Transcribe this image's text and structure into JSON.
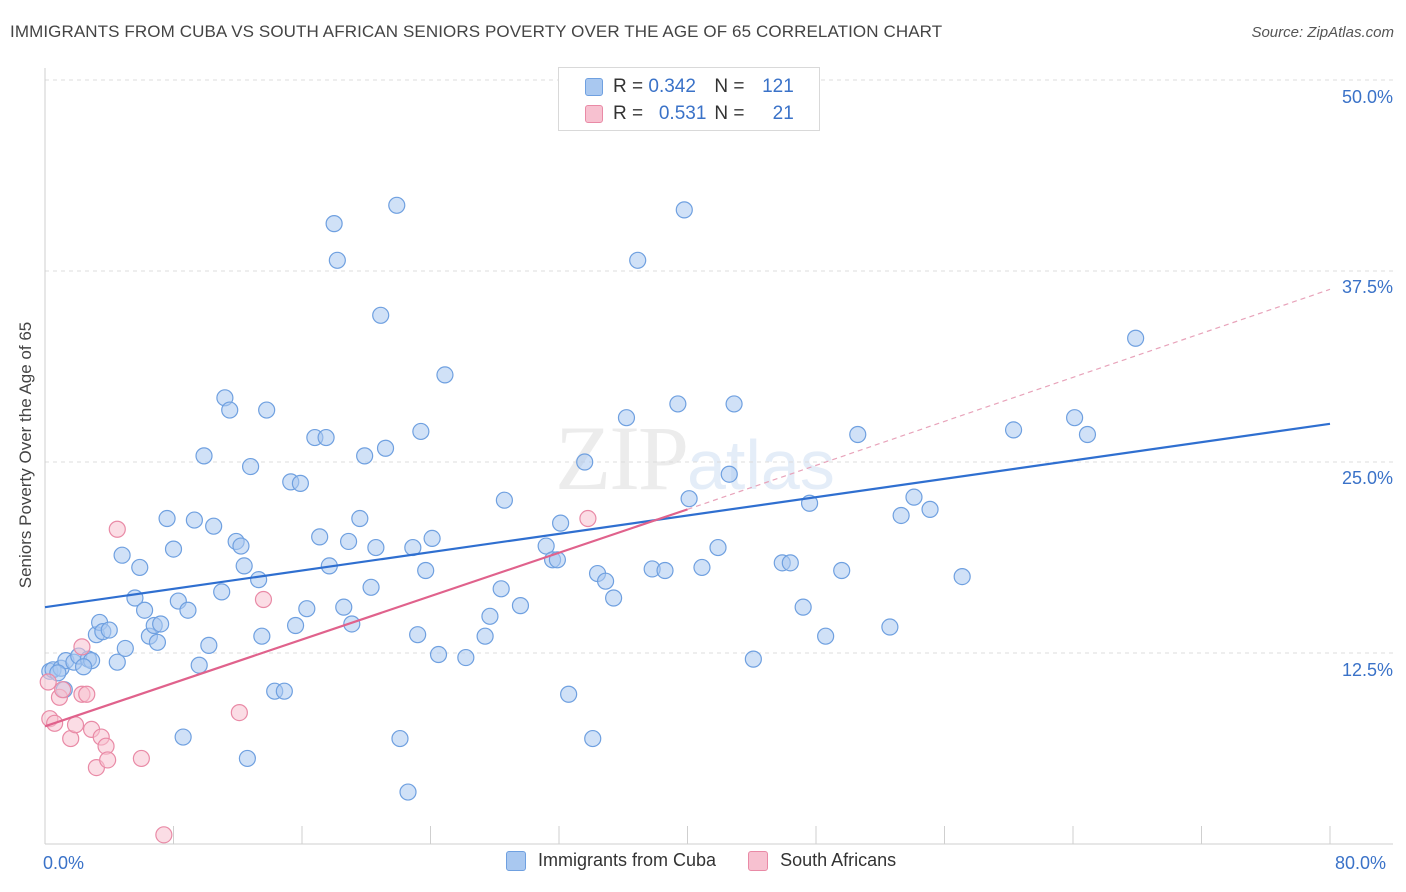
{
  "title": "IMMIGRANTS FROM CUBA VS SOUTH AFRICAN SENIORS POVERTY OVER THE AGE OF 65 CORRELATION CHART",
  "source": "Source: ZipAtlas.com",
  "watermark": {
    "part1": "ZIP",
    "part2": "atlas"
  },
  "legend_top": [
    {
      "r_label": "R =",
      "r_value": "0.342",
      "n_label": "N =",
      "n_value": "121",
      "color": "#a9c8f0",
      "border": "#6fa0e0"
    },
    {
      "r_label": "R =",
      "r_value": "0.531",
      "n_label": "N =",
      "n_value": "21",
      "color": "#f7c1d0",
      "border": "#e98aa6"
    }
  ],
  "legend_bottom": [
    {
      "label": "Immigrants from Cuba",
      "color": "#a9c8f0",
      "border": "#6fa0e0"
    },
    {
      "label": "South Africans",
      "color": "#f7c1d0",
      "border": "#e98aa6"
    }
  ],
  "chart_data": {
    "type": "scatter",
    "title": "IMMIGRANTS FROM CUBA VS SOUTH AFRICAN SENIORS POVERTY OVER THE AGE OF 65 CORRELATION CHART",
    "xlabel": "",
    "ylabel": "Seniors Poverty Over the Age of 65",
    "xlim": [
      0,
      80
    ],
    "ylim": [
      0,
      50
    ],
    "x_tick_labels": [
      "0.0%",
      "80.0%"
    ],
    "y_tick_labels": [
      "12.5%",
      "25.0%",
      "37.5%",
      "50.0%"
    ],
    "y_ticks": [
      12.5,
      25.0,
      37.5,
      50.0
    ],
    "grid": "horizontal dashed",
    "legend_placement": "top-center and bottom",
    "series": [
      {
        "name": "Immigrants from Cuba",
        "color": "#6fa0e0",
        "fill": "#a9c8f0",
        "trend": {
          "x0": 0,
          "y0": 15.5,
          "x1": 80,
          "y1": 27.5
        },
        "points": [
          [
            0.3,
            11.3
          ],
          [
            0.5,
            11.4
          ],
          [
            1.0,
            11.5
          ],
          [
            1.3,
            12.0
          ],
          [
            1.8,
            11.9
          ],
          [
            2.1,
            12.3
          ],
          [
            2.7,
            12.1
          ],
          [
            1.2,
            10.1
          ],
          [
            2.9,
            12.0
          ],
          [
            3.2,
            13.7
          ],
          [
            3.4,
            14.5
          ],
          [
            3.6,
            13.9
          ],
          [
            4.0,
            14.0
          ],
          [
            4.5,
            11.9
          ],
          [
            5.0,
            12.8
          ],
          [
            4.8,
            18.9
          ],
          [
            5.6,
            16.1
          ],
          [
            5.9,
            18.1
          ],
          [
            6.2,
            15.3
          ],
          [
            6.5,
            13.6
          ],
          [
            6.8,
            14.3
          ],
          [
            7.0,
            13.2
          ],
          [
            7.2,
            14.4
          ],
          [
            7.6,
            21.3
          ],
          [
            8.0,
            19.3
          ],
          [
            8.3,
            15.9
          ],
          [
            8.6,
            7.0
          ],
          [
            8.9,
            15.3
          ],
          [
            9.3,
            21.2
          ],
          [
            9.6,
            11.7
          ],
          [
            9.9,
            25.4
          ],
          [
            10.2,
            13.0
          ],
          [
            10.5,
            20.8
          ],
          [
            11.0,
            16.5
          ],
          [
            11.2,
            29.2
          ],
          [
            11.5,
            28.4
          ],
          [
            11.9,
            19.8
          ],
          [
            12.2,
            19.5
          ],
          [
            12.4,
            18.2
          ],
          [
            12.6,
            5.6
          ],
          [
            12.8,
            24.7
          ],
          [
            13.3,
            17.3
          ],
          [
            13.5,
            13.6
          ],
          [
            13.8,
            28.4
          ],
          [
            14.3,
            10.0
          ],
          [
            14.9,
            10.0
          ],
          [
            15.3,
            23.7
          ],
          [
            15.6,
            14.3
          ],
          [
            15.9,
            23.6
          ],
          [
            16.3,
            15.4
          ],
          [
            16.8,
            26.6
          ],
          [
            17.1,
            20.1
          ],
          [
            17.5,
            26.6
          ],
          [
            17.7,
            18.2
          ],
          [
            18.0,
            40.6
          ],
          [
            18.2,
            38.2
          ],
          [
            18.6,
            15.5
          ],
          [
            18.9,
            19.8
          ],
          [
            19.1,
            14.4
          ],
          [
            19.6,
            21.3
          ],
          [
            19.9,
            25.4
          ],
          [
            20.3,
            16.8
          ],
          [
            20.6,
            19.4
          ],
          [
            20.9,
            34.6
          ],
          [
            21.2,
            25.9
          ],
          [
            21.9,
            41.8
          ],
          [
            22.1,
            6.9
          ],
          [
            22.6,
            3.4
          ],
          [
            22.9,
            19.4
          ],
          [
            23.2,
            13.7
          ],
          [
            23.4,
            27.0
          ],
          [
            23.7,
            17.9
          ],
          [
            24.1,
            20.0
          ],
          [
            24.5,
            12.4
          ],
          [
            24.9,
            30.7
          ],
          [
            26.2,
            12.2
          ],
          [
            27.4,
            13.6
          ],
          [
            27.7,
            14.9
          ],
          [
            28.4,
            16.7
          ],
          [
            28.6,
            22.5
          ],
          [
            29.6,
            15.6
          ],
          [
            31.2,
            19.5
          ],
          [
            31.6,
            18.6
          ],
          [
            31.9,
            18.6
          ],
          [
            32.1,
            21.0
          ],
          [
            32.6,
            9.8
          ],
          [
            33.6,
            25.0
          ],
          [
            34.1,
            6.9
          ],
          [
            34.4,
            17.7
          ],
          [
            34.9,
            17.2
          ],
          [
            35.4,
            16.1
          ],
          [
            36.2,
            27.9
          ],
          [
            36.9,
            38.2
          ],
          [
            37.8,
            18.0
          ],
          [
            38.6,
            17.9
          ],
          [
            39.4,
            28.8
          ],
          [
            39.8,
            41.5
          ],
          [
            40.1,
            22.6
          ],
          [
            40.9,
            18.1
          ],
          [
            41.9,
            19.4
          ],
          [
            42.6,
            24.2
          ],
          [
            42.9,
            28.8
          ],
          [
            44.1,
            12.1
          ],
          [
            45.9,
            18.4
          ],
          [
            46.4,
            18.4
          ],
          [
            47.2,
            15.5
          ],
          [
            47.6,
            22.3
          ],
          [
            48.6,
            13.6
          ],
          [
            49.6,
            17.9
          ],
          [
            50.6,
            26.8
          ],
          [
            52.6,
            14.2
          ],
          [
            53.3,
            21.5
          ],
          [
            54.1,
            22.7
          ],
          [
            55.1,
            21.9
          ],
          [
            57.1,
            17.5
          ],
          [
            60.3,
            27.1
          ],
          [
            64.1,
            27.9
          ],
          [
            64.9,
            26.8
          ],
          [
            67.9,
            33.1
          ],
          [
            0.8,
            11.2
          ],
          [
            2.4,
            11.6
          ]
        ]
      },
      {
        "name": "South Africans",
        "color": "#e98aa6",
        "fill": "#f7c1d0",
        "trend": {
          "x0": 0,
          "y0": 7.7,
          "x1": 40,
          "y1": 21.9
        },
        "trend_extension": {
          "x0": 40,
          "y0": 21.9,
          "x1": 80,
          "y1": 36.3
        },
        "points": [
          [
            0.3,
            8.2
          ],
          [
            0.6,
            7.9
          ],
          [
            0.9,
            9.6
          ],
          [
            1.1,
            10.1
          ],
          [
            1.6,
            6.9
          ],
          [
            1.9,
            7.8
          ],
          [
            2.3,
            9.8
          ],
          [
            2.3,
            12.9
          ],
          [
            2.6,
            9.8
          ],
          [
            2.9,
            7.5
          ],
          [
            3.2,
            5.0
          ],
          [
            3.5,
            7.0
          ],
          [
            3.8,
            6.4
          ],
          [
            3.9,
            5.5
          ],
          [
            4.5,
            20.6
          ],
          [
            6.0,
            5.6
          ],
          [
            7.4,
            0.6
          ],
          [
            12.1,
            8.6
          ],
          [
            13.6,
            16.0
          ],
          [
            33.8,
            21.3
          ],
          [
            0.2,
            10.6
          ]
        ]
      }
    ]
  }
}
